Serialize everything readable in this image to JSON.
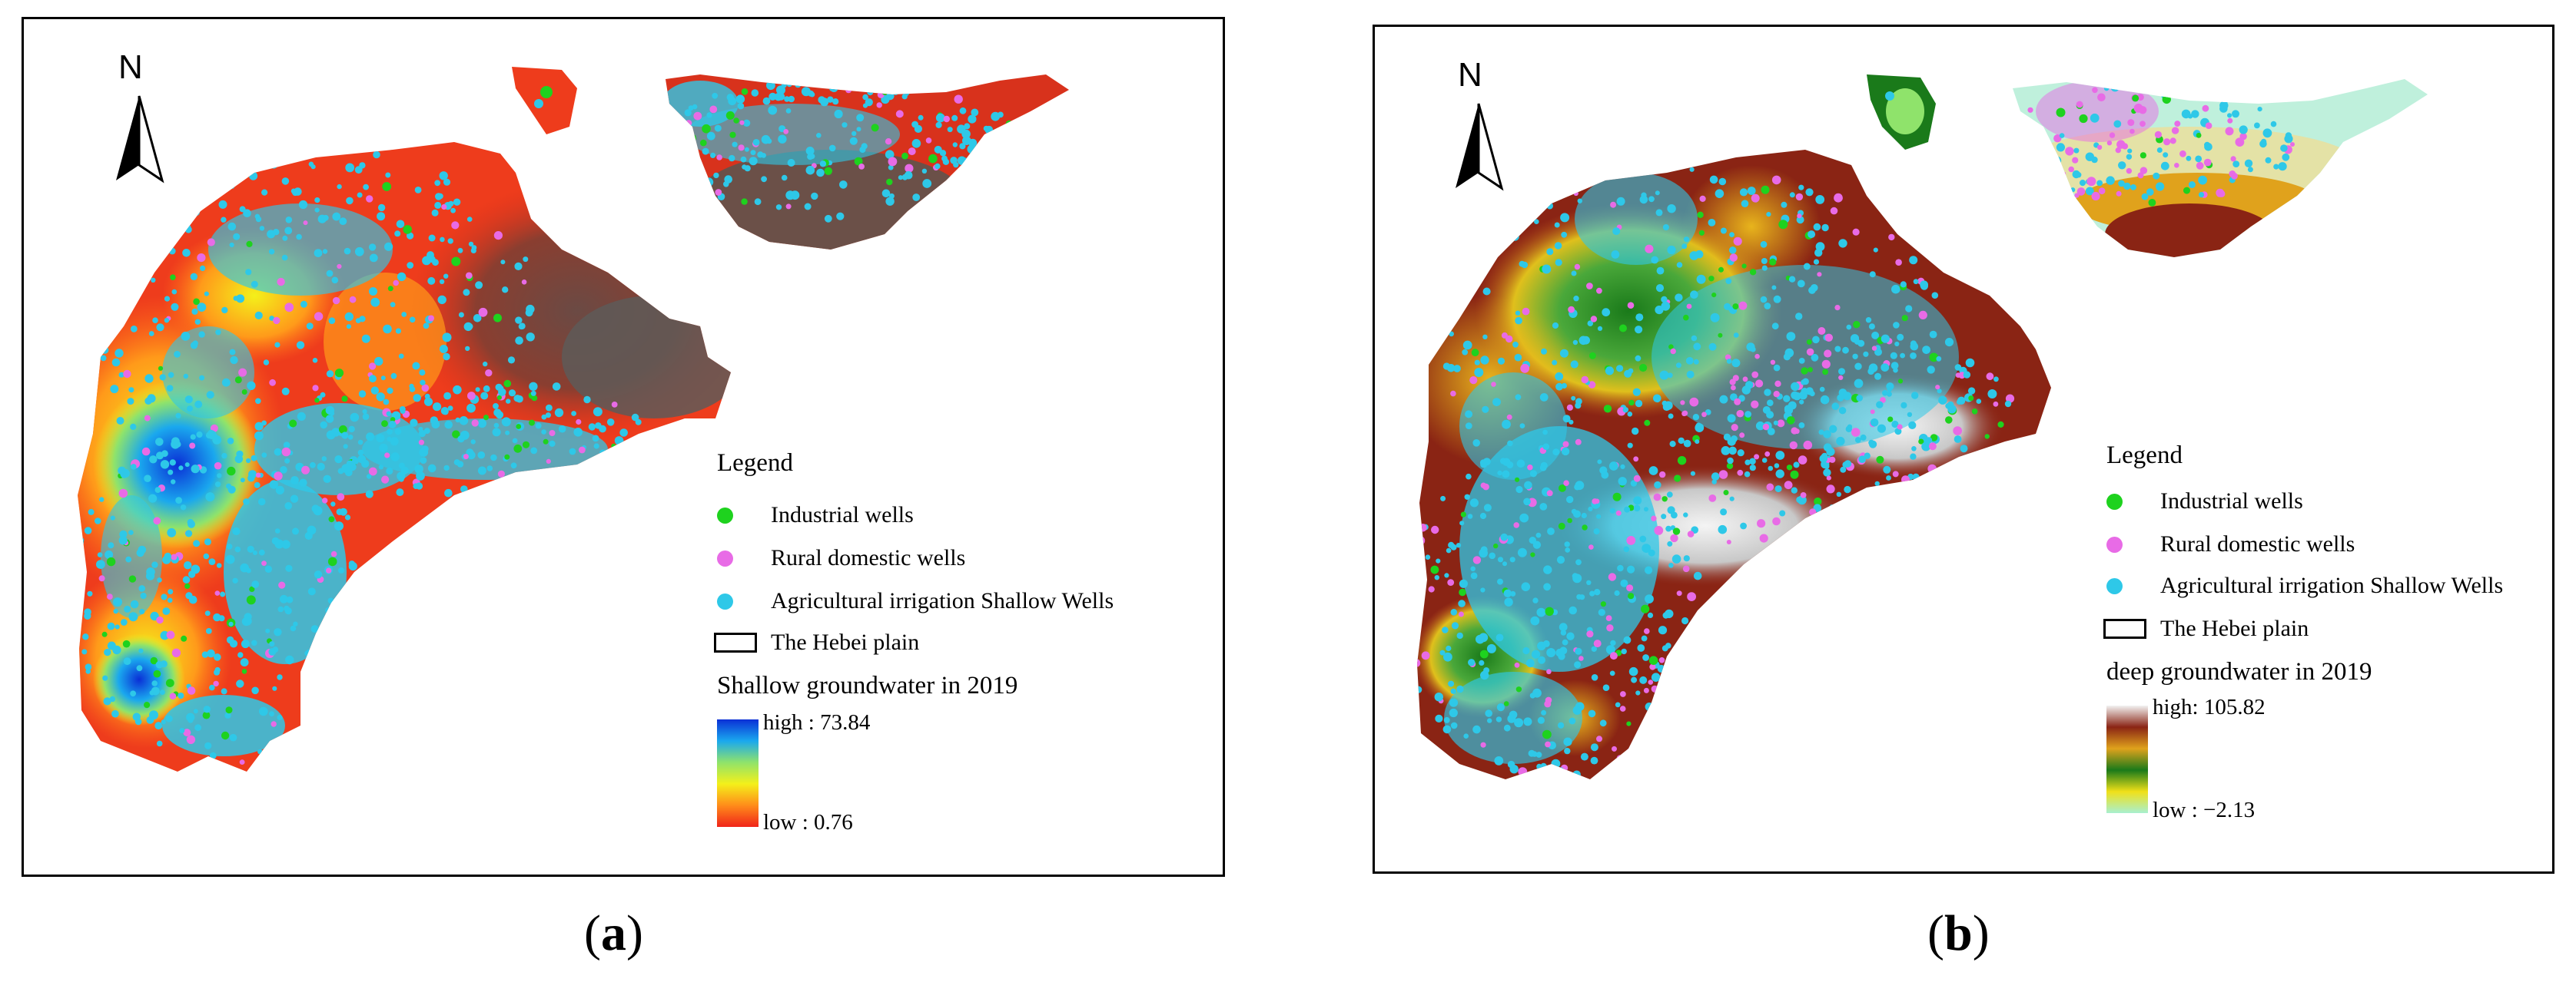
{
  "panels": [
    {
      "id": "a",
      "north_label": "N",
      "legend": {
        "title": "Legend",
        "items": [
          {
            "label": "Industrial wells",
            "color": "#1ed21e",
            "shape": "dot"
          },
          {
            "label": "Rural domestic wells",
            "color": "#e86be6",
            "shape": "dot"
          },
          {
            "label": "Agricultural irrigation Shallow Wells",
            "color": "#2ec8e8",
            "shape": "dot"
          },
          {
            "label": "The Hebei plain",
            "color": "#ffffff",
            "shape": "rect"
          }
        ],
        "ramp_title": "Shallow groundwater in 2019",
        "ramp_high": "high : 73.84",
        "ramp_low": "low : 0.76",
        "ramp_colors": [
          "#0a2fd6",
          "#1aa8ee",
          "#8fe36b",
          "#f4f01a",
          "#ff8c1a",
          "#f0241a"
        ]
      },
      "caption": {
        "open": "(",
        "letter": "a",
        "close": ")"
      }
    },
    {
      "id": "b",
      "north_label": "N",
      "legend": {
        "title": "Legend",
        "items": [
          {
            "label": "Industrial wells",
            "color": "#1ed21e",
            "shape": "dot"
          },
          {
            "label": "Rural domestic wells",
            "color": "#e86be6",
            "shape": "dot"
          },
          {
            "label": "Agricultural irrigation Shallow Wells",
            "color": "#2ec8e8",
            "shape": "dot"
          },
          {
            "label": "The Hebei plain",
            "color": "#ffffff",
            "shape": "rect"
          }
        ],
        "ramp_title": "deep groundwater in 2019",
        "ramp_high": "high: 105.82",
        "ramp_low": "low : −2.13",
        "ramp_colors": [
          "#f2f2f2",
          "#8a2414",
          "#e0a21c",
          "#1a7a1a",
          "#f0e018",
          "#a8f0d0"
        ]
      },
      "caption": {
        "open": "(",
        "letter": "b",
        "close": ")"
      }
    }
  ]
}
